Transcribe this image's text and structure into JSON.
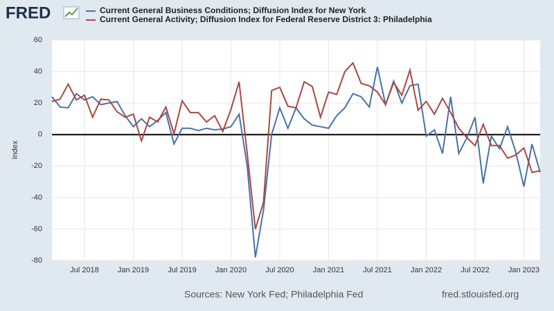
{
  "logo": "FRED",
  "chart_data": {
    "type": "line",
    "ylabel": "Index",
    "x": [
      "2018-03",
      "2018-04",
      "2018-05",
      "2018-06",
      "2018-07",
      "2018-08",
      "2018-09",
      "2018-10",
      "2018-11",
      "2018-12",
      "2019-01",
      "2019-02",
      "2019-03",
      "2019-04",
      "2019-05",
      "2019-06",
      "2019-07",
      "2019-08",
      "2019-09",
      "2019-10",
      "2019-11",
      "2019-12",
      "2020-01",
      "2020-02",
      "2020-03",
      "2020-04",
      "2020-05",
      "2020-06",
      "2020-07",
      "2020-08",
      "2020-09",
      "2020-10",
      "2020-11",
      "2020-12",
      "2021-01",
      "2021-02",
      "2021-03",
      "2021-04",
      "2021-05",
      "2021-06",
      "2021-07",
      "2021-08",
      "2021-09",
      "2021-10",
      "2021-11",
      "2021-12",
      "2022-01",
      "2022-02",
      "2022-03",
      "2022-04",
      "2022-05",
      "2022-06",
      "2022-07",
      "2022-08",
      "2022-09",
      "2022-10",
      "2022-11",
      "2022-12",
      "2023-01",
      "2023-02",
      "2023-03"
    ],
    "series": [
      {
        "name": "Current General Business Conditions; Diffusion Index for New York",
        "color": "#4572a7",
        "values": [
          24,
          17.5,
          17,
          26,
          22,
          24,
          19,
          20,
          21,
          12,
          5,
          10,
          5,
          9,
          14,
          -6,
          4,
          4,
          2.5,
          4,
          3,
          3.5,
          5,
          13,
          -20,
          -78,
          -48,
          0,
          17,
          4,
          17,
          10,
          6,
          5,
          4,
          12,
          17,
          26,
          24,
          17.5,
          43,
          19,
          34,
          20,
          31,
          32,
          -1,
          3,
          -12,
          24,
          -12,
          -2,
          11,
          -31,
          -1,
          -9,
          5,
          -11,
          -33,
          -6,
          -24
        ]
      },
      {
        "name": "Current General Activity; Diffusion Index for Federal Reserve District 3: Philadelphia",
        "color": "#aa4643",
        "values": [
          21,
          22.5,
          32,
          22,
          25,
          11,
          22.5,
          22,
          14.5,
          11,
          13,
          -4,
          11,
          8,
          17.5,
          0.5,
          21.5,
          14,
          14,
          8,
          12,
          2,
          16,
          33.5,
          -12,
          -60,
          -43,
          28,
          30,
          18,
          17,
          33.5,
          30.5,
          11,
          27,
          25.5,
          40,
          45.5,
          32.5,
          31,
          27,
          19,
          33,
          25,
          41,
          15.5,
          21,
          13,
          23,
          14,
          4,
          -2,
          -7,
          6.5,
          -7,
          -7,
          -15,
          -13,
          -8.5,
          -24,
          -23
        ]
      }
    ],
    "xlim": [
      "2018-03",
      "2023-03"
    ],
    "xticks": [
      {
        "value": "2018-07",
        "label": "Jul 2018"
      },
      {
        "value": "2019-01",
        "label": "Jan 2019"
      },
      {
        "value": "2019-07",
        "label": "Jul 2019"
      },
      {
        "value": "2020-01",
        "label": "Jan 2020"
      },
      {
        "value": "2020-07",
        "label": "Jul 2020"
      },
      {
        "value": "2021-01",
        "label": "Jan 2021"
      },
      {
        "value": "2021-07",
        "label": "Jul 2021"
      },
      {
        "value": "2022-01",
        "label": "Jan 2022"
      },
      {
        "value": "2022-07",
        "label": "Jul 2022"
      },
      {
        "value": "2023-01",
        "label": "Jan 2023"
      }
    ],
    "ylim": [
      -80,
      60
    ],
    "yticks": [
      -80,
      -60,
      -40,
      -20,
      0,
      20,
      40,
      60
    ],
    "grid": true
  },
  "footer": {
    "sources": "Sources: New York Fed; Philadelphia Fed",
    "url": "fred.stlouisfed.org"
  }
}
